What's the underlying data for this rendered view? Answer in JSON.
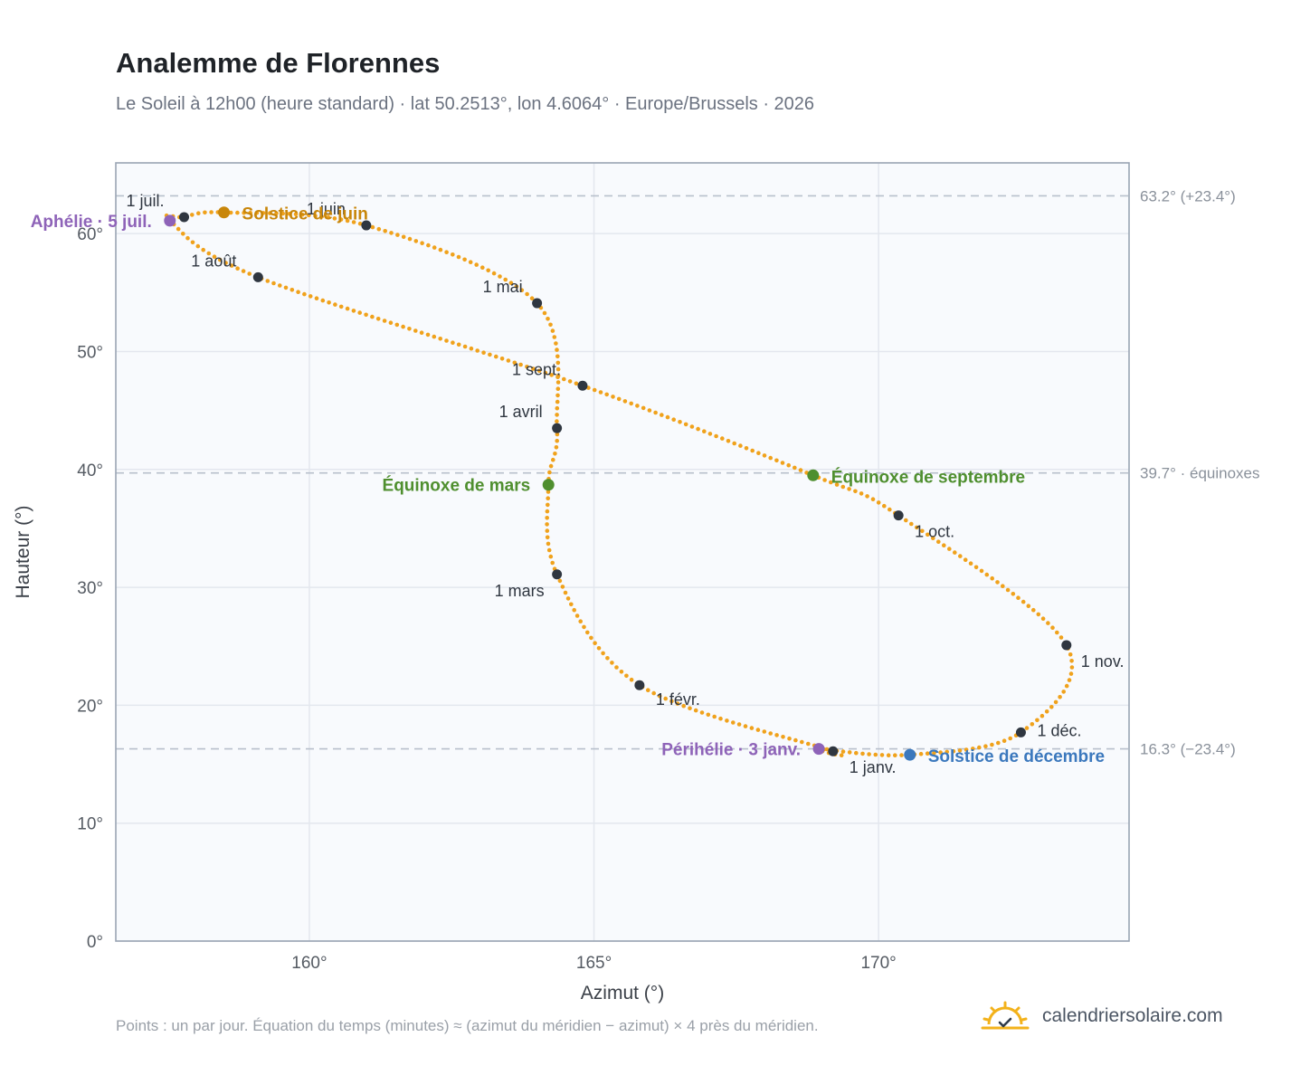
{
  "title": "Analemme de Florennes",
  "subtitle": "Le Soleil à 12h00 (heure standard) · lat 50.2513°, lon 4.6064° · Europe/Brussels · 2026",
  "footnote": "Points : un par jour. Équation du temps (minutes) ≈ (azimut du méridien − azimut) × 4 près du méridien.",
  "brand": {
    "text": "calendriersolaire.com",
    "icon": "sun-check-icon"
  },
  "chart_data": {
    "type": "scatter",
    "xlabel": "Azimut (°)",
    "ylabel": "Hauteur (°)",
    "xlim": [
      156.6,
      174.4
    ],
    "ylim": [
      0,
      66
    ],
    "xticks": [
      {
        "value": 160,
        "label": "160°"
      },
      {
        "value": 165,
        "label": "165°"
      },
      {
        "value": 170,
        "label": "170°"
      }
    ],
    "yticks": [
      {
        "value": 0,
        "label": "0°"
      },
      {
        "value": 10,
        "label": "10°"
      },
      {
        "value": 20,
        "label": "20°"
      },
      {
        "value": 30,
        "label": "30°"
      },
      {
        "value": 40,
        "label": "40°"
      },
      {
        "value": 50,
        "label": "50°"
      },
      {
        "value": 60,
        "label": "60°"
      }
    ],
    "grid": true,
    "reference_lines": [
      {
        "y": 63.2,
        "label": "63.2° (+23.4°)"
      },
      {
        "y": 39.7,
        "label": "39.7° · équinoxes"
      },
      {
        "y": 16.3,
        "label": "16.3° (−23.4°)"
      }
    ],
    "curve": {
      "description_points_per_day": true,
      "color": "#f0a21c",
      "path": [
        {
          "date": "1 janv.",
          "az": 169.2,
          "alt": 16.1
        },
        {
          "date": "1 févr.",
          "az": 165.8,
          "alt": 21.7
        },
        {
          "date": "1 mars",
          "az": 164.35,
          "alt": 31.1
        },
        {
          "date": "Équinoxe de mars",
          "az": 164.2,
          "alt": 38.7
        },
        {
          "date": "1 avril",
          "az": 164.35,
          "alt": 43.5
        },
        {
          "date": "1 mai",
          "az": 164.0,
          "alt": 54.1
        },
        {
          "date": "1 juin",
          "az": 161.0,
          "alt": 60.7
        },
        {
          "date": "Solstice de juin",
          "az": 158.5,
          "alt": 61.8
        },
        {
          "date": "1 juil.",
          "az": 157.8,
          "alt": 61.4
        },
        {
          "date": "Aphélie · 5 juil.",
          "az": 157.55,
          "alt": 61.1
        },
        {
          "date": "1 août",
          "az": 159.1,
          "alt": 56.3
        },
        {
          "date": "1 sept.",
          "az": 164.8,
          "alt": 47.1
        },
        {
          "date": "Équinoxe de septembre",
          "az": 168.85,
          "alt": 39.5
        },
        {
          "date": "1 oct.",
          "az": 170.35,
          "alt": 36.1
        },
        {
          "date": "1 nov.",
          "az": 173.3,
          "alt": 25.1
        },
        {
          "date": "1 déc.",
          "az": 172.5,
          "alt": 17.7
        },
        {
          "date": "Solstice de décembre",
          "az": 170.55,
          "alt": 15.8
        },
        {
          "date": "Périhélie · 3 janv.",
          "az": 168.95,
          "alt": 16.3
        }
      ]
    },
    "month_markers": [
      {
        "label": "1 janv.",
        "az": 169.2,
        "alt": 16.1
      },
      {
        "label": "1 févr.",
        "az": 165.8,
        "alt": 21.7
      },
      {
        "label": "1 mars",
        "az": 164.35,
        "alt": 31.1
      },
      {
        "label": "1 avril",
        "az": 164.35,
        "alt": 43.5
      },
      {
        "label": "1 mai",
        "az": 164.0,
        "alt": 54.1
      },
      {
        "label": "1 juin",
        "az": 161.0,
        "alt": 60.7
      },
      {
        "label": "1 juil.",
        "az": 157.8,
        "alt": 61.4
      },
      {
        "label": "1 août",
        "az": 159.1,
        "alt": 56.3
      },
      {
        "label": "1 sept.",
        "az": 164.8,
        "alt": 47.1
      },
      {
        "label": "1 oct.",
        "az": 170.35,
        "alt": 36.1
      },
      {
        "label": "1 nov.",
        "az": 173.3,
        "alt": 25.1
      },
      {
        "label": "1 déc.",
        "az": 172.5,
        "alt": 17.7
      }
    ],
    "events": [
      {
        "label": "Solstice de juin",
        "az": 158.5,
        "alt": 61.8,
        "color": "#c8860a"
      },
      {
        "label": "Aphélie · 5 juil.",
        "az": 157.55,
        "alt": 61.1,
        "color": "#8e63b8"
      },
      {
        "label": "Équinoxe de mars",
        "az": 164.2,
        "alt": 38.7,
        "color": "#4f8f2f"
      },
      {
        "label": "Équinoxe de septembre",
        "az": 168.85,
        "alt": 39.5,
        "color": "#4f8f2f"
      },
      {
        "label": "Périhélie · 3 janv.",
        "az": 168.95,
        "alt": 16.3,
        "color": "#8e63b8"
      },
      {
        "label": "Solstice de décembre",
        "az": 170.55,
        "alt": 15.8,
        "color": "#3b78bd"
      }
    ]
  }
}
